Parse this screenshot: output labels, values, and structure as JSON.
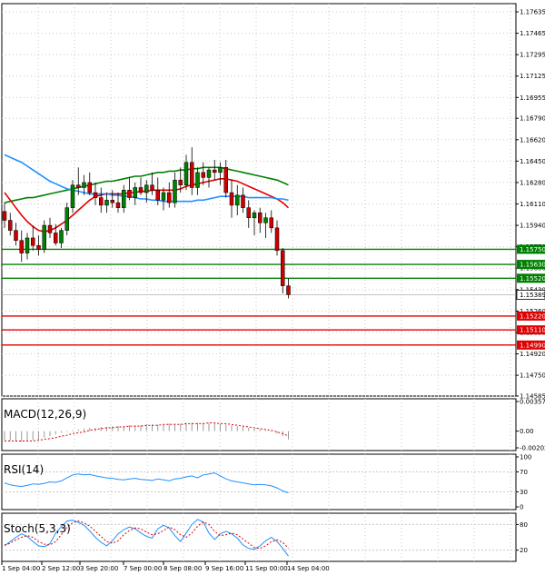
{
  "chart_data": {
    "type": "candlestick",
    "price_axis": {
      "ticks": [
        "1.17635",
        "1.17465",
        "1.17295",
        "1.17125",
        "1.16955",
        "1.16790",
        "1.16620",
        "1.16450",
        "1.16280",
        "1.16110",
        "1.15940",
        "1.15770",
        "1.15600",
        "1.15430",
        "1.15260",
        "1.15090",
        "1.14920",
        "1.14750",
        "1.14585"
      ],
      "range": [
        1.14585,
        1.177
      ]
    },
    "time_axis": {
      "labels": [
        "1 Sep 04:00",
        "2 Sep 12:00",
        "3 Sep 20:00",
        "7 Sep 00:00",
        "8 Sep 08:00",
        "9 Sep 16:00",
        "11 Sep 00:00",
        "14 Sep 04:00"
      ]
    },
    "levels": [
      {
        "value": "1.15750",
        "color": "#008000"
      },
      {
        "value": "1.15630",
        "color": "#008000"
      },
      {
        "value": "1.15520",
        "color": "#008000"
      },
      {
        "value": "1.15220",
        "color": "#e00000"
      },
      {
        "value": "1.15110",
        "color": "#e00000"
      },
      {
        "value": "1.14990",
        "color": "#e00000"
      }
    ],
    "current_price": "1.15389",
    "candles": [
      [
        1.1605,
        1.1612,
        1.1592,
        1.1598
      ],
      [
        1.1598,
        1.1604,
        1.1586,
        1.159
      ],
      [
        1.159,
        1.1596,
        1.1578,
        1.1582
      ],
      [
        1.1582,
        1.159,
        1.1565,
        1.1572
      ],
      [
        1.1572,
        1.1588,
        1.1567,
        1.1584
      ],
      [
        1.1584,
        1.1594,
        1.1574,
        1.1578
      ],
      [
        1.1578,
        1.1586,
        1.157,
        1.1575
      ],
      [
        1.1575,
        1.1598,
        1.1572,
        1.1594
      ],
      [
        1.1594,
        1.16,
        1.1584,
        1.1588
      ],
      [
        1.1588,
        1.1595,
        1.1578,
        1.158
      ],
      [
        1.158,
        1.1592,
        1.1576,
        1.159
      ],
      [
        1.159,
        1.1612,
        1.1586,
        1.1608
      ],
      [
        1.1608,
        1.163,
        1.1604,
        1.1626
      ],
      [
        1.1626,
        1.164,
        1.1618,
        1.1624
      ],
      [
        1.1624,
        1.1634,
        1.1618,
        1.1628
      ],
      [
        1.1628,
        1.1636,
        1.1618,
        1.162
      ],
      [
        1.162,
        1.1628,
        1.161,
        1.1616
      ],
      [
        1.1616,
        1.1624,
        1.1604,
        1.161
      ],
      [
        1.161,
        1.162,
        1.1604,
        1.1614
      ],
      [
        1.1614,
        1.1622,
        1.1608,
        1.1612
      ],
      [
        1.1612,
        1.162,
        1.1604,
        1.1608
      ],
      [
        1.1608,
        1.1626,
        1.1604,
        1.1622
      ],
      [
        1.1622,
        1.1632,
        1.1614,
        1.1616
      ],
      [
        1.1616,
        1.1628,
        1.161,
        1.1624
      ],
      [
        1.1624,
        1.1632,
        1.1618,
        1.162
      ],
      [
        1.162,
        1.163,
        1.1612,
        1.1626
      ],
      [
        1.1626,
        1.1636,
        1.1618,
        1.1622
      ],
      [
        1.1622,
        1.1632,
        1.161,
        1.1614
      ],
      [
        1.1614,
        1.1624,
        1.1606,
        1.162
      ],
      [
        1.162,
        1.1628,
        1.1608,
        1.1612
      ],
      [
        1.1612,
        1.1636,
        1.1608,
        1.163
      ],
      [
        1.163,
        1.164,
        1.162,
        1.1626
      ],
      [
        1.1626,
        1.165,
        1.1622,
        1.1644
      ],
      [
        1.1644,
        1.1656,
        1.1618,
        1.1624
      ],
      [
        1.1624,
        1.164,
        1.1618,
        1.1636
      ],
      [
        1.1636,
        1.1644,
        1.1626,
        1.1632
      ],
      [
        1.1632,
        1.164,
        1.1624,
        1.1638
      ],
      [
        1.1638,
        1.1646,
        1.163,
        1.1636
      ],
      [
        1.1636,
        1.1644,
        1.1626,
        1.164
      ],
      [
        1.164,
        1.1646,
        1.1616,
        1.162
      ],
      [
        1.162,
        1.163,
        1.16,
        1.161
      ],
      [
        1.161,
        1.1626,
        1.1602,
        1.1618
      ],
      [
        1.1618,
        1.1624,
        1.1604,
        1.1608
      ],
      [
        1.1608,
        1.1614,
        1.1592,
        1.16
      ],
      [
        1.16,
        1.1606,
        1.1586,
        1.1604
      ],
      [
        1.1604,
        1.1608,
        1.1588,
        1.1596
      ],
      [
        1.1596,
        1.1604,
        1.1584,
        1.16
      ],
      [
        1.16,
        1.1606,
        1.1588,
        1.1592
      ],
      [
        1.1592,
        1.1598,
        1.157,
        1.1574
      ],
      [
        1.1574,
        1.1576,
        1.154,
        1.1546
      ],
      [
        1.1546,
        1.1552,
        1.1536,
        1.1539
      ]
    ],
    "series": [
      {
        "color": "#008000",
        "values": [
          1.1612,
          1.1613,
          1.1614,
          1.1615,
          1.1616,
          1.1616,
          1.1617,
          1.1618,
          1.1619,
          1.162,
          1.1621,
          1.1622,
          1.1623,
          1.1624,
          1.1625,
          1.1626,
          1.1627,
          1.1628,
          1.1629,
          1.1629,
          1.163,
          1.1631,
          1.1632,
          1.1633,
          1.1633,
          1.1634,
          1.1635,
          1.1636,
          1.1636,
          1.1637,
          1.1637,
          1.1638,
          1.1638,
          1.1639,
          1.1639,
          1.164,
          1.164,
          1.164,
          1.164,
          1.1639,
          1.1638,
          1.1637,
          1.1636,
          1.1635,
          1.1634,
          1.1633,
          1.1632,
          1.1631,
          1.163,
          1.1628,
          1.1626
        ]
      },
      {
        "color": "#e00000",
        "values": [
          1.162,
          1.1614,
          1.1608,
          1.1602,
          1.1597,
          1.1593,
          1.159,
          1.1589,
          1.159,
          1.1592,
          1.1595,
          1.1598,
          1.1602,
          1.1606,
          1.161,
          1.1614,
          1.1617,
          1.1618,
          1.1619,
          1.1619,
          1.1619,
          1.1619,
          1.162,
          1.162,
          1.1621,
          1.1621,
          1.1622,
          1.1622,
          1.1622,
          1.1622,
          1.1622,
          1.1623,
          1.1625,
          1.1626,
          1.1627,
          1.1628,
          1.1629,
          1.163,
          1.1631,
          1.1631,
          1.163,
          1.1629,
          1.1627,
          1.1625,
          1.1623,
          1.1621,
          1.1619,
          1.1617,
          1.1615,
          1.1612,
          1.1608
        ]
      },
      {
        "color": "#1e90ff",
        "values": [
          1.165,
          1.1648,
          1.1646,
          1.1644,
          1.1641,
          1.1638,
          1.1635,
          1.1632,
          1.1629,
          1.1627,
          1.1625,
          1.1623,
          1.1622,
          1.1621,
          1.162,
          1.1619,
          1.1619,
          1.1619,
          1.1619,
          1.1618,
          1.1618,
          1.1617,
          1.1617,
          1.1616,
          1.1615,
          1.1615,
          1.1614,
          1.1614,
          1.1613,
          1.1613,
          1.1613,
          1.1613,
          1.1613,
          1.1613,
          1.1614,
          1.1614,
          1.1615,
          1.1616,
          1.1617,
          1.1617,
          1.1617,
          1.1617,
          1.1617,
          1.1616,
          1.1616,
          1.1616,
          1.1616,
          1.1616,
          1.1615,
          1.1615,
          1.1614
        ]
      }
    ],
    "indicators": [
      {
        "name": "MACD(12,26,9)",
        "ticks": [
          "0.003576",
          "0.00",
          "-0.002021"
        ],
        "range": [
          -0.002021,
          0.003576
        ],
        "hist": [
          -0.0011,
          -0.0012,
          -0.0013,
          -0.0013,
          -0.0012,
          -0.0011,
          -0.001,
          -0.0008,
          -0.0006,
          -0.0004,
          -0.0002,
          -0.0001,
          0.0001,
          0.0002,
          0.0003,
          0.0004,
          0.0004,
          0.0005,
          0.0005,
          0.0006,
          0.0006,
          0.0006,
          0.0007,
          0.0007,
          0.0007,
          0.0008,
          0.0008,
          0.0008,
          0.0008,
          0.0009,
          0.0009,
          0.0009,
          0.001,
          0.001,
          0.001,
          0.001,
          0.001,
          0.001,
          0.0009,
          0.0008,
          0.0007,
          0.0006,
          0.0005,
          0.0004,
          0.0003,
          0.0002,
          0.0001,
          -0.0001,
          -0.0003,
          -0.0006,
          -0.001
        ],
        "signal": [
          -0.0012,
          -0.0012,
          -0.0012,
          -0.0012,
          -0.0012,
          -0.0012,
          -0.0011,
          -0.001,
          -0.0009,
          -0.0008,
          -0.0006,
          -0.0005,
          -0.0003,
          -0.0002,
          -0.0001,
          0.0001,
          0.0002,
          0.0003,
          0.0004,
          0.0004,
          0.0005,
          0.0005,
          0.0006,
          0.0006,
          0.0006,
          0.0007,
          0.0007,
          0.0007,
          0.0008,
          0.0008,
          0.0008,
          0.0008,
          0.0009,
          0.0009,
          0.0009,
          0.0009,
          0.001,
          0.001,
          0.0009,
          0.0009,
          0.0008,
          0.0007,
          0.0006,
          0.0005,
          0.0004,
          0.0003,
          0.0002,
          0.0001,
          -0.0001,
          -0.0003,
          -0.0006
        ]
      },
      {
        "name": "RSI(14)",
        "ticks": [
          "100",
          "70",
          "30",
          "0"
        ],
        "range": [
          0,
          100
        ],
        "values": [
          48,
          44,
          42,
          41,
          43,
          46,
          45,
          47,
          50,
          49,
          52,
          58,
          64,
          66,
          64,
          65,
          62,
          60,
          58,
          57,
          55,
          54,
          56,
          57,
          55,
          54,
          53,
          56,
          54,
          52,
          56,
          57,
          60,
          62,
          58,
          64,
          66,
          68,
          62,
          56,
          52,
          50,
          48,
          46,
          44,
          45,
          44,
          42,
          38,
          32,
          28
        ]
      },
      {
        "name": "Stoch(5,3,3)",
        "ticks": [
          "80",
          "20"
        ],
        "range": [
          0,
          100
        ],
        "k": [
          30,
          40,
          50,
          58,
          52,
          40,
          30,
          28,
          35,
          60,
          75,
          88,
          90,
          85,
          78,
          65,
          50,
          38,
          30,
          42,
          58,
          68,
          74,
          70,
          60,
          52,
          48,
          70,
          78,
          72,
          54,
          40,
          60,
          80,
          92,
          86,
          60,
          45,
          58,
          64,
          58,
          48,
          32,
          24,
          22,
          30,
          42,
          50,
          40,
          24,
          6
        ],
        "d": [
          32,
          36,
          44,
          50,
          54,
          50,
          40,
          34,
          32,
          40,
          56,
          74,
          84,
          88,
          84,
          76,
          64,
          52,
          40,
          36,
          42,
          56,
          66,
          72,
          70,
          62,
          56,
          58,
          66,
          74,
          68,
          56,
          50,
          60,
          76,
          86,
          80,
          64,
          54,
          56,
          60,
          56,
          46,
          36,
          26,
          24,
          30,
          40,
          44,
          38,
          24
        ]
      }
    ]
  }
}
